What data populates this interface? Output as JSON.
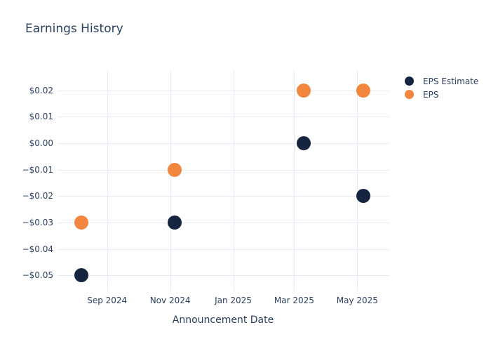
{
  "colors": {
    "text": "#2a3f5f",
    "grid": "#e5ecf6",
    "background": "#ffffff",
    "eps_estimate": "#152540",
    "eps": "#f2863e"
  },
  "chart_data": {
    "type": "scatter",
    "title": "Earnings History",
    "xlabel": "Announcement Date",
    "ylabel": "",
    "x": [
      "2024-08-07",
      "2024-11-05",
      "2025-03-10",
      "2025-05-07"
    ],
    "series": [
      {
        "name": "EPS Estimate",
        "color": "#152540",
        "values": [
          -0.05,
          -0.03,
          0.0,
          -0.02
        ]
      },
      {
        "name": "EPS",
        "color": "#f2863e",
        "values": [
          -0.03,
          -0.01,
          0.02,
          0.02
        ]
      }
    ],
    "x_ticks": [
      {
        "date": "2024-09-01",
        "label": "Sep 2024"
      },
      {
        "date": "2024-11-01",
        "label": "Nov 2024"
      },
      {
        "date": "2025-01-01",
        "label": "Jan 2025"
      },
      {
        "date": "2025-03-01",
        "label": "Mar 2025"
      },
      {
        "date": "2025-05-01",
        "label": "May 2025"
      }
    ],
    "y_ticks": [
      {
        "value": 0.02,
        "label": "$0.02"
      },
      {
        "value": 0.01,
        "label": "$0.01"
      },
      {
        "value": 0.0,
        "label": "$0.00"
      },
      {
        "value": -0.01,
        "label": "−$0.01"
      },
      {
        "value": -0.02,
        "label": "−$0.02"
      },
      {
        "value": -0.03,
        "label": "−$0.03"
      },
      {
        "value": -0.04,
        "label": "−$0.04"
      },
      {
        "value": -0.05,
        "label": "−$0.05"
      }
    ],
    "x_range": [
      "2024-07-15",
      "2025-06-01"
    ],
    "y_range": [
      -0.056,
      0.0276
    ],
    "grid": true,
    "legend_position": "right",
    "marker_size": 20
  }
}
